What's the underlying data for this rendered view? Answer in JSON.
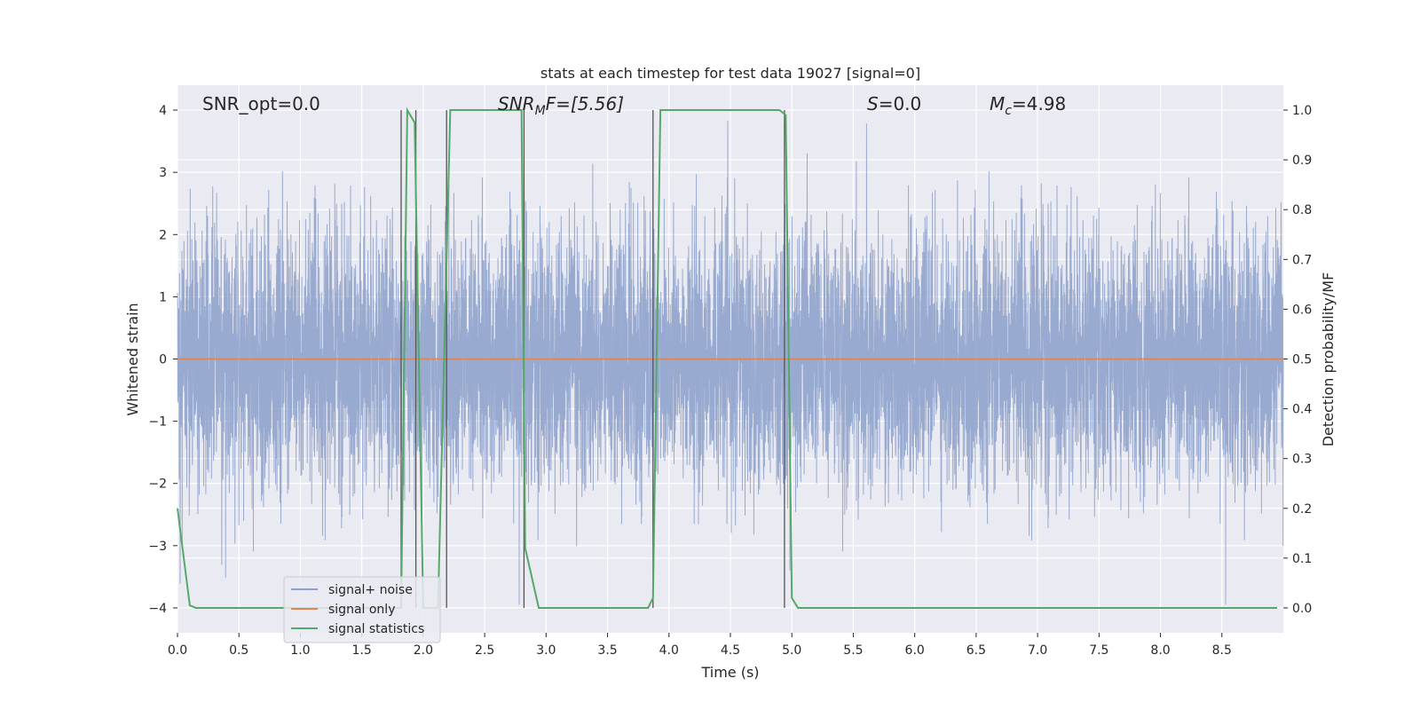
{
  "chart_data": {
    "type": "line",
    "title": "stats at each timestep for test data 19027 [signal=0]",
    "xlabel": "Time (s)",
    "ylabel": "Whitened strain",
    "y2label": "Detection probability/MF",
    "xlim": [
      0.0,
      9.0
    ],
    "ylim": [
      -4.4,
      4.4
    ],
    "y2lim": [
      -0.05,
      1.05
    ],
    "xticks": [
      0.0,
      0.5,
      1.0,
      1.5,
      2.0,
      2.5,
      3.0,
      3.5,
      4.0,
      4.5,
      5.0,
      5.5,
      6.0,
      6.5,
      7.0,
      7.5,
      8.0,
      8.5
    ],
    "xtick_labels": [
      "0.0",
      "0.5",
      "1.0",
      "1.5",
      "2.0",
      "2.5",
      "3.0",
      "3.5",
      "4.0",
      "4.5",
      "5.0",
      "5.5",
      "6.0",
      "6.5",
      "7.0",
      "7.5",
      "8.0",
      "8.5"
    ],
    "yticks": [
      4,
      3,
      2,
      1,
      0,
      -1,
      -2,
      -3,
      -4
    ],
    "ytick_labels": [
      "4",
      "3",
      "2",
      "1",
      "0",
      "−1",
      "−2",
      "−3",
      "−4"
    ],
    "y2ticks": [
      1.0,
      0.9,
      0.8,
      0.7,
      0.6,
      0.5,
      0.4,
      0.3,
      0.2,
      0.1,
      0.0
    ],
    "y2tick_labels": [
      "1.0",
      "0.9",
      "0.8",
      "0.7",
      "0.6",
      "0.5",
      "0.4",
      "0.3",
      "0.2",
      "0.1",
      "0.0"
    ],
    "grid": true,
    "legend": {
      "placement": "lower-left",
      "entries": [
        "signal+ noise",
        "signal only",
        "signal statistics"
      ]
    },
    "annotations": {
      "snr_opt": "SNR_opt=0.0",
      "snr_mf_main": "SNR",
      "snr_mf_sub": "M",
      "snr_mf_rest": "F=[5.56]",
      "s_main": "S",
      "s_rest": "=0.0",
      "mc_main": "M",
      "mc_sub": "c",
      "mc_rest": "=4.98"
    },
    "series": [
      {
        "name": "signal+ noise",
        "axis": "left",
        "color": "#8fa3cc",
        "description_stats": {
          "std": 1.0,
          "min": -3.95,
          "max": 4.0,
          "samples": 8192
        }
      },
      {
        "name": "signal only",
        "axis": "left",
        "color": "#dd8452",
        "x": [
          0.0,
          9.0
        ],
        "y": [
          0.0,
          0.0
        ]
      },
      {
        "name": "signal statistics",
        "axis": "right",
        "color": "#55a868",
        "x": [
          0.0,
          0.1,
          0.15,
          1.82,
          1.87,
          1.93,
          2.0,
          2.12,
          2.17,
          2.22,
          2.8,
          2.83,
          2.94,
          3.83,
          3.87,
          3.93,
          4.9,
          4.95,
          5.0,
          5.05,
          8.95
        ],
        "y": [
          0.2,
          0.005,
          0.0,
          0.0,
          1.0,
          0.975,
          0.0,
          0.0,
          0.5,
          1.0,
          1.0,
          0.12,
          0.0,
          0.0,
          0.02,
          1.0,
          1.0,
          0.99,
          0.02,
          0.0,
          0.0
        ]
      }
    ],
    "vlines": [
      1.82,
      1.94,
      2.19,
      2.82,
      3.87,
      4.94
    ]
  }
}
